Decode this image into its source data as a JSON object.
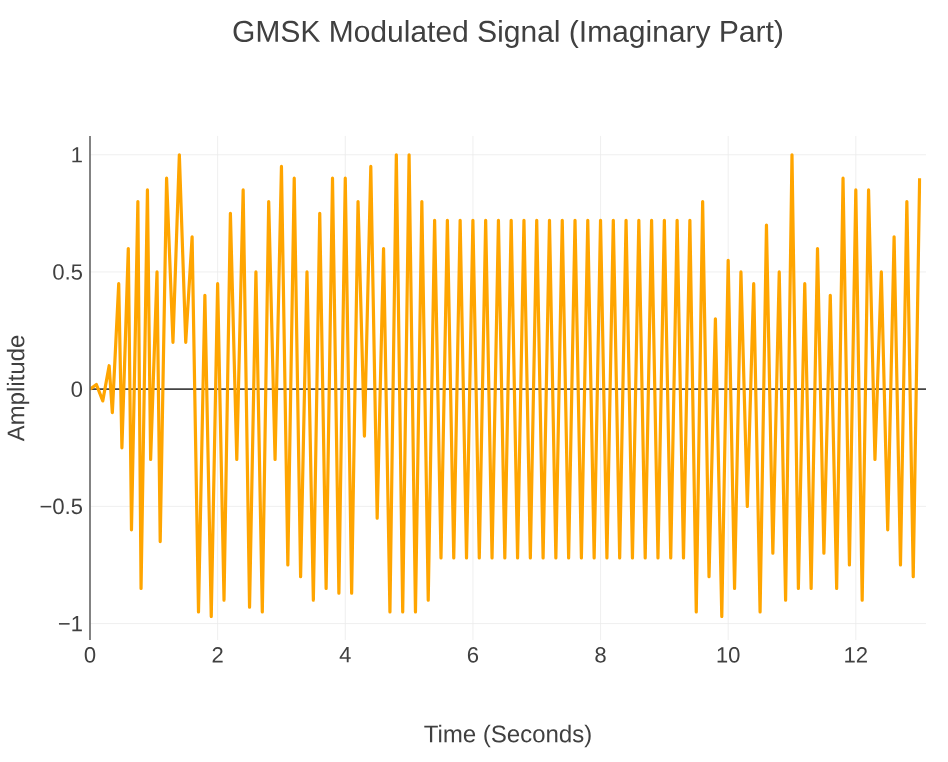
{
  "chart_data": {
    "type": "line",
    "title": "GMSK Modulated Signal (Imaginary Part)",
    "xlabel": "Time (Seconds)",
    "ylabel": "Amplitude",
    "xlim": [
      0,
      13.1
    ],
    "ylim": [
      -1.07,
      1.08
    ],
    "xticks": [
      0,
      2,
      4,
      6,
      8,
      10,
      12
    ],
    "yticks": [
      {
        "value": -1,
        "label": "−1"
      },
      {
        "value": -0.5,
        "label": "−0.5"
      },
      0,
      0.5,
      1
    ],
    "grid": true,
    "marker": "none",
    "line_style": "solid",
    "ref_lines": [
      {
        "axis": "y",
        "value": 0,
        "color": "#444444"
      }
    ],
    "series": [
      {
        "color": "#ffa500",
        "x": [
          0,
          0.1,
          0.2,
          0.3,
          0.35,
          0.45,
          0.5,
          0.6,
          0.65,
          0.75,
          0.8,
          0.9,
          0.95,
          1.05,
          1.1,
          1.2,
          1.3,
          1.4,
          1.5,
          1.6,
          1.7,
          1.8,
          1.9,
          2.0,
          2.1,
          2.2,
          2.3,
          2.4,
          2.5,
          2.6,
          2.7,
          2.8,
          2.9,
          3.0,
          3.1,
          3.2,
          3.3,
          3.4,
          3.5,
          3.6,
          3.7,
          3.8,
          3.9,
          4.0,
          4.1,
          4.2,
          4.3,
          4.4,
          4.5,
          4.6,
          4.7,
          4.8,
          4.9,
          5.0,
          5.1,
          5.2,
          5.3,
          5.4,
          5.5,
          5.6,
          5.7,
          5.8,
          5.9,
          6.0,
          6.1,
          6.2,
          6.3,
          6.4,
          6.5,
          6.6,
          6.7,
          6.8,
          6.9,
          7.0,
          7.1,
          7.2,
          7.3,
          7.4,
          7.5,
          7.6,
          7.7,
          7.8,
          7.9,
          8.0,
          8.1,
          8.2,
          8.3,
          8.4,
          8.5,
          8.6,
          8.7,
          8.8,
          8.9,
          9.0,
          9.1,
          9.2,
          9.3,
          9.4,
          9.5,
          9.6,
          9.7,
          9.8,
          9.9,
          10.0,
          10.1,
          10.2,
          10.3,
          10.4,
          10.5,
          10.6,
          10.7,
          10.8,
          10.9,
          11.0,
          11.1,
          11.2,
          11.3,
          11.4,
          11.5,
          11.6,
          11.7,
          11.8,
          11.9,
          12.0,
          12.1,
          12.2,
          12.3,
          12.4,
          12.5,
          12.6,
          12.7,
          12.8,
          12.9,
          13.0
        ],
        "values": [
          0,
          0.02,
          -0.05,
          0.1,
          -0.1,
          0.45,
          -0.25,
          0.6,
          -0.6,
          0.8,
          -0.85,
          0.85,
          -0.3,
          0.5,
          -0.65,
          0.9,
          0.2,
          1.0,
          0.2,
          0.65,
          -0.95,
          0.4,
          -0.97,
          0.45,
          -0.9,
          0.75,
          -0.3,
          0.85,
          -0.93,
          0.5,
          -0.95,
          0.8,
          -0.3,
          0.95,
          -0.75,
          0.9,
          -0.8,
          0.5,
          -0.9,
          0.75,
          -0.85,
          0.9,
          -0.87,
          0.9,
          -0.87,
          0.8,
          -0.2,
          0.95,
          -0.55,
          0.6,
          -0.95,
          1.0,
          -0.95,
          1.0,
          -0.95,
          0.8,
          -0.9,
          0.72,
          -0.72,
          0.72,
          -0.72,
          0.72,
          -0.72,
          0.72,
          -0.72,
          0.72,
          -0.72,
          0.72,
          -0.72,
          0.72,
          -0.72,
          0.72,
          -0.72,
          0.72,
          -0.72,
          0.72,
          -0.72,
          0.72,
          -0.72,
          0.72,
          -0.72,
          0.72,
          -0.72,
          0.72,
          -0.72,
          0.72,
          -0.72,
          0.72,
          -0.72,
          0.72,
          -0.72,
          0.72,
          -0.72,
          0.72,
          -0.72,
          0.72,
          -0.72,
          0.72,
          -0.95,
          0.8,
          -0.8,
          0.3,
          -0.97,
          0.55,
          -0.85,
          0.5,
          -0.5,
          0.45,
          -0.95,
          0.7,
          -0.7,
          0.5,
          -0.9,
          1.0,
          -0.85,
          0.45,
          -0.85,
          0.6,
          -0.7,
          0.4,
          -0.85,
          0.9,
          -0.75,
          0.85,
          -0.9,
          0.85,
          -0.3,
          0.5,
          -0.6,
          0.65,
          -0.75,
          0.8,
          -0.8,
          0.9
        ]
      }
    ]
  }
}
